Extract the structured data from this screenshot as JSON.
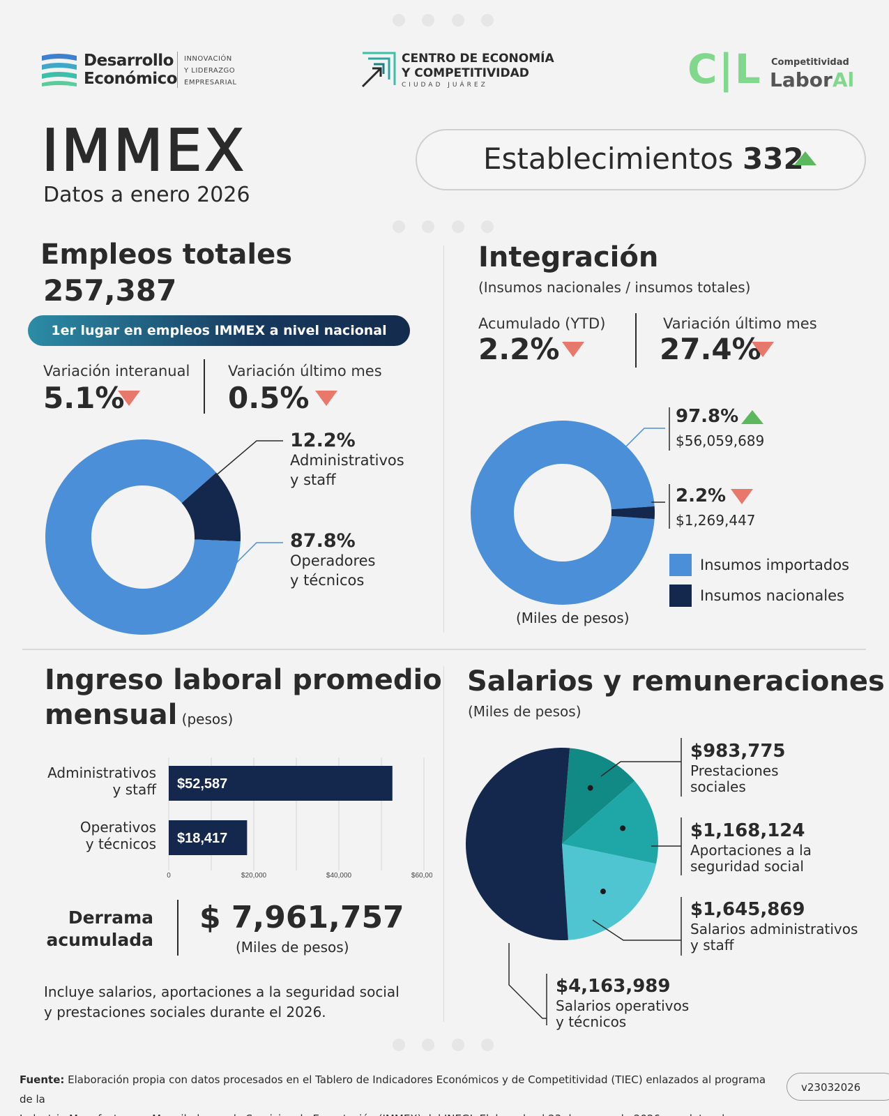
{
  "header": {
    "logo1": {
      "line1": "Desarrollo",
      "line2": "Económico",
      "tag1": "INNOVACIÓN",
      "tag2": "Y LIDERAZGO",
      "tag3": "EMPRESARIAL"
    },
    "logo2": {
      "line1": "CENTRO DE ECONOMÍA",
      "line2": "Y COMPETITIVIDAD",
      "line3": "CIUDAD JUÁREZ"
    },
    "logo3": {
      "letters": "C|L",
      "small": "Competitividad",
      "big_main": "Labor",
      "big_accent": "Al"
    }
  },
  "title": {
    "main": "IMMEX",
    "subtitle": "Datos a enero 2026"
  },
  "establecimientos": {
    "label": "Establecimientos",
    "value": "332",
    "trend": "up"
  },
  "empleos": {
    "title": "Empleos totales",
    "total": "257,387",
    "banner": "1er lugar en empleos IMMEX a nivel nacional",
    "var_anual_label": "Variación interanual",
    "var_anual_value": "5.1%",
    "var_mes_label": "Variación último mes",
    "var_mes_value": "0.5%",
    "seg1_pct": "12.2%",
    "seg1_l1": "Administrativos",
    "seg1_l2": "y staff",
    "seg2_pct": "87.8%",
    "seg2_l1": "Operadores",
    "seg2_l2": "y técnicos"
  },
  "integracion": {
    "title": "Integración",
    "subtitle": "(Insumos nacionales / insumos totales)",
    "ytd_label": "Acumulado (YTD)",
    "ytd_value": "2.2%",
    "mes_label": "Variación último mes",
    "mes_value": "27.4%",
    "imp_pct": "97.8%",
    "imp_amount": "$56,059,689",
    "nac_pct": "2.2%",
    "nac_amount": "$1,269,447",
    "legend_imp": "Insumos importados",
    "legend_nac": "Insumos nacionales",
    "units": "(Miles de pesos)",
    "color_imp": "#4a8fd8",
    "color_nac": "#14284d"
  },
  "ingreso": {
    "title1": "Ingreso laboral promedio",
    "title2": "mensual",
    "title_unit": "(pesos)",
    "bar1_label1": "Administrativos",
    "bar1_label2": "y staff",
    "bar2_label1": "Operativos",
    "bar2_label2": "y técnicos",
    "derrama_label1": "Derrama",
    "derrama_label2": "acumulada",
    "derrama_value": "$ 7,961,757",
    "derrama_units": "(Miles de pesos)",
    "note1": "Incluye salarios, aportaciones a la seguridad social",
    "note2": "y prestaciones sociales durante el 2026."
  },
  "salarios": {
    "title": "Salarios y remuneraciones",
    "subtitle": "(Miles de pesos)",
    "s1_value": "$983,775",
    "s1_l1": "Prestaciones",
    "s1_l2": "sociales",
    "s2_value": "$1,168,124",
    "s2_l1": "Aportaciones a la",
    "s2_l2": "seguridad social",
    "s3_value": "$1,645,869",
    "s3_l1": "Salarios administrativos",
    "s3_l2": "y staff",
    "s4_value": "$4,163,989",
    "s4_l1": "Salarios operativos",
    "s4_l2": "y técnicos"
  },
  "footer": {
    "source_label": "Fuente:",
    "source_text1": "Elaboración propia con datos procesados en el Tablero de Indicadores Económicos y de Competitividad (TIEC) enlazados al programa de la",
    "source_text2": "Industria Manufacturera, Maquiladora y de Servicios de Exportación (IMMEX) del INEGI. Elaborado el 23 de marzo de 2026 con datos de enero 2026.",
    "version": "v23032026"
  },
  "chart_data": [
    {
      "type": "pie",
      "categories": [
        "Administrativos y staff",
        "Operadores y técnicos"
      ],
      "values": [
        12.2,
        87.8
      ],
      "colors": [
        "#14284d",
        "#4a8fd8"
      ]
    },
    {
      "type": "pie",
      "categories": [
        "Insumos importados",
        "Insumos nacionales"
      ],
      "values": [
        97.8,
        2.2
      ],
      "amounts": [
        56059689,
        1269447
      ],
      "colors": [
        "#4a8fd8",
        "#14284d"
      ]
    },
    {
      "type": "bar",
      "orientation": "horizontal",
      "categories": [
        "Administrativos y staff",
        "Operativos y técnicos"
      ],
      "values": [
        52587,
        18417
      ],
      "value_labels": [
        "$52,587",
        "$18,417"
      ],
      "xlim": [
        0,
        60000
      ],
      "xticks": [
        0,
        20000,
        40000,
        60000
      ],
      "xtick_labels": [
        "0",
        "$20,000",
        "$40,000",
        "$60,000"
      ],
      "color": "#14284d"
    },
    {
      "type": "pie",
      "categories": [
        "Prestaciones sociales",
        "Aportaciones a la seguridad social",
        "Salarios administrativos y staff",
        "Salarios operativos y técnicos"
      ],
      "values": [
        983775,
        1168124,
        1645869,
        4163989
      ],
      "colors": [
        "#118a86",
        "#1fa7a8",
        "#4ec5d0",
        "#14284d"
      ]
    }
  ]
}
